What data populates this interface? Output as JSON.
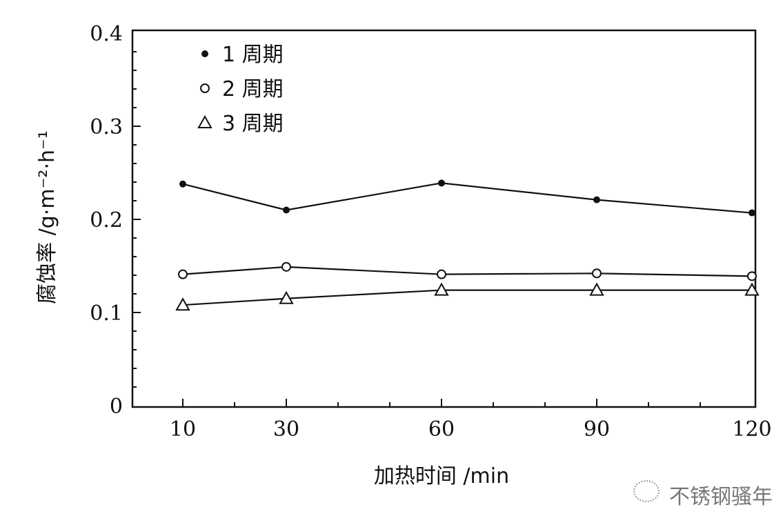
{
  "chart_data": {
    "type": "line",
    "title": "",
    "xlabel": "加热时间 /min",
    "ylabel": "腐蚀率 /g·m⁻²·h⁻¹",
    "x": [
      10,
      30,
      60,
      90,
      120
    ],
    "xticks": [
      "10",
      "30",
      "60",
      "90",
      "120"
    ],
    "yticks": [
      "0",
      "0.1",
      "0.2",
      "0.3",
      "0.4"
    ],
    "xlim": [
      0,
      120
    ],
    "ylim": [
      0,
      0.4
    ],
    "grid": false,
    "legend_position": "top-left",
    "series": [
      {
        "name": "1周期",
        "marker": "filled-circle",
        "values": [
          0.238,
          0.21,
          0.239,
          0.221,
          0.207
        ]
      },
      {
        "name": "2周期",
        "marker": "open-circle",
        "values": [
          0.141,
          0.149,
          0.141,
          0.142,
          0.139
        ]
      },
      {
        "name": "3周期",
        "marker": "open-triangle",
        "values": [
          0.108,
          0.115,
          0.124,
          0.124,
          0.124
        ]
      }
    ]
  },
  "watermark": {
    "text": "不锈钢骚年",
    "icon": "wechat-icon"
  }
}
